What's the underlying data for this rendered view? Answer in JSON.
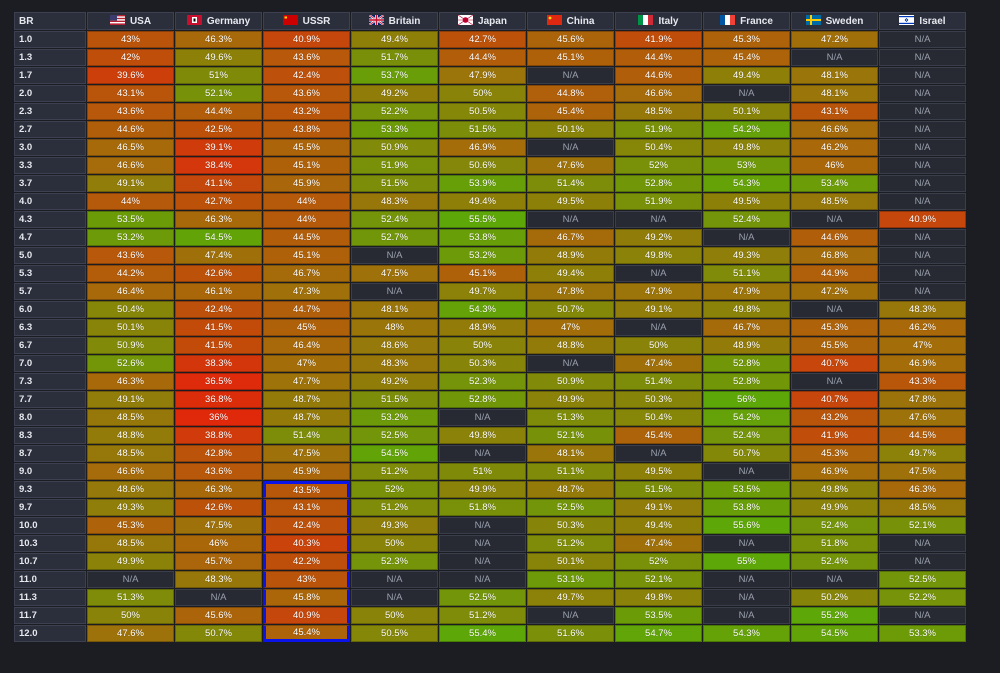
{
  "table": {
    "br_header": "BR",
    "nations": [
      {
        "name": "USA",
        "icon": "usa-flag-icon"
      },
      {
        "name": "Germany",
        "icon": "germany-flag-icon"
      },
      {
        "name": "USSR",
        "icon": "ussr-flag-icon"
      },
      {
        "name": "Britain",
        "icon": "britain-flag-icon"
      },
      {
        "name": "Japan",
        "icon": "japan-flag-icon"
      },
      {
        "name": "China",
        "icon": "china-flag-icon"
      },
      {
        "name": "Italy",
        "icon": "italy-flag-icon"
      },
      {
        "name": "France",
        "icon": "france-flag-icon"
      },
      {
        "name": "Sweden",
        "icon": "sweden-flag-icon"
      },
      {
        "name": "Israel",
        "icon": "israel-flag-icon"
      }
    ],
    "rows": [
      {
        "br": "1.0",
        "values": [
          "43%",
          "46.3%",
          "40.9%",
          "49.4%",
          "42.7%",
          "45.6%",
          "41.9%",
          "45.3%",
          "47.2%",
          "N/A"
        ]
      },
      {
        "br": "1.3",
        "values": [
          "42%",
          "49.6%",
          "43.6%",
          "51.7%",
          "44.4%",
          "45.1%",
          "44.4%",
          "45.4%",
          "N/A",
          "N/A"
        ]
      },
      {
        "br": "1.7",
        "values": [
          "39.6%",
          "51%",
          "42.4%",
          "53.7%",
          "47.9%",
          "N/A",
          "44.6%",
          "49.4%",
          "48.1%",
          "N/A"
        ]
      },
      {
        "br": "2.0",
        "values": [
          "43.1%",
          "52.1%",
          "43.6%",
          "49.2%",
          "50%",
          "44.8%",
          "46.6%",
          "N/A",
          "48.1%",
          "N/A"
        ]
      },
      {
        "br": "2.3",
        "values": [
          "43.6%",
          "44.4%",
          "43.2%",
          "52.2%",
          "50.5%",
          "45.4%",
          "48.5%",
          "50.1%",
          "43.1%",
          "N/A"
        ]
      },
      {
        "br": "2.7",
        "values": [
          "44.6%",
          "42.5%",
          "43.8%",
          "53.3%",
          "51.5%",
          "50.1%",
          "51.9%",
          "54.2%",
          "46.6%",
          "N/A"
        ]
      },
      {
        "br": "3.0",
        "values": [
          "46.5%",
          "39.1%",
          "45.5%",
          "50.9%",
          "46.9%",
          "N/A",
          "50.4%",
          "49.8%",
          "46.2%",
          "N/A"
        ]
      },
      {
        "br": "3.3",
        "values": [
          "46.6%",
          "38.4%",
          "45.1%",
          "51.9%",
          "50.6%",
          "47.6%",
          "52%",
          "53%",
          "46%",
          "N/A"
        ]
      },
      {
        "br": "3.7",
        "values": [
          "49.1%",
          "41.1%",
          "45.9%",
          "51.5%",
          "53.9%",
          "51.4%",
          "52.8%",
          "54.3%",
          "53.4%",
          "N/A"
        ]
      },
      {
        "br": "4.0",
        "values": [
          "44%",
          "42.7%",
          "44%",
          "48.3%",
          "49.4%",
          "49.5%",
          "51.9%",
          "49.5%",
          "48.5%",
          "N/A"
        ]
      },
      {
        "br": "4.3",
        "values": [
          "53.5%",
          "46.3%",
          "44%",
          "52.4%",
          "55.5%",
          "N/A",
          "N/A",
          "52.4%",
          "N/A",
          "40.9%"
        ]
      },
      {
        "br": "4.7",
        "values": [
          "53.2%",
          "54.5%",
          "44.5%",
          "52.7%",
          "53.8%",
          "46.7%",
          "49.2%",
          "N/A",
          "44.6%",
          "N/A"
        ]
      },
      {
        "br": "5.0",
        "values": [
          "43.6%",
          "47.4%",
          "45.1%",
          "N/A",
          "53.2%",
          "48.9%",
          "49.8%",
          "49.3%",
          "46.8%",
          "N/A"
        ]
      },
      {
        "br": "5.3",
        "values": [
          "44.2%",
          "42.6%",
          "46.7%",
          "47.5%",
          "45.1%",
          "49.4%",
          "N/A",
          "51.1%",
          "44.9%",
          "N/A"
        ]
      },
      {
        "br": "5.7",
        "values": [
          "46.4%",
          "46.1%",
          "47.3%",
          "N/A",
          "49.7%",
          "47.8%",
          "47.9%",
          "47.9%",
          "47.2%",
          "N/A"
        ]
      },
      {
        "br": "6.0",
        "values": [
          "50.4%",
          "42.4%",
          "44.7%",
          "48.1%",
          "54.3%",
          "50.7%",
          "49.1%",
          "49.8%",
          "N/A",
          "48.3%"
        ]
      },
      {
        "br": "6.3",
        "values": [
          "50.1%",
          "41.5%",
          "45%",
          "48%",
          "48.9%",
          "47%",
          "N/A",
          "46.7%",
          "45.3%",
          "46.2%"
        ]
      },
      {
        "br": "6.7",
        "values": [
          "50.9%",
          "41.5%",
          "46.4%",
          "48.6%",
          "50%",
          "48.8%",
          "50%",
          "48.9%",
          "45.5%",
          "47%"
        ]
      },
      {
        "br": "7.0",
        "values": [
          "52.6%",
          "38.3%",
          "47%",
          "48.3%",
          "50.3%",
          "N/A",
          "47.4%",
          "52.8%",
          "40.7%",
          "46.9%"
        ]
      },
      {
        "br": "7.3",
        "values": [
          "46.3%",
          "36.5%",
          "47.7%",
          "49.2%",
          "52.3%",
          "50.9%",
          "51.4%",
          "52.8%",
          "N/A",
          "43.3%"
        ]
      },
      {
        "br": "7.7",
        "values": [
          "49.1%",
          "36.8%",
          "48.7%",
          "51.5%",
          "52.8%",
          "49.9%",
          "50.3%",
          "56%",
          "40.7%",
          "47.8%"
        ]
      },
      {
        "br": "8.0",
        "values": [
          "48.5%",
          "36%",
          "48.7%",
          "53.2%",
          "N/A",
          "51.3%",
          "50.4%",
          "54.2%",
          "43.2%",
          "47.6%"
        ]
      },
      {
        "br": "8.3",
        "values": [
          "48.8%",
          "38.8%",
          "51.4%",
          "52.5%",
          "49.8%",
          "52.1%",
          "45.4%",
          "52.4%",
          "41.9%",
          "44.5%"
        ]
      },
      {
        "br": "8.7",
        "values": [
          "48.5%",
          "42.8%",
          "47.5%",
          "54.5%",
          "N/A",
          "48.1%",
          "N/A",
          "50.7%",
          "45.3%",
          "49.7%"
        ]
      },
      {
        "br": "9.0",
        "values": [
          "46.6%",
          "43.6%",
          "45.9%",
          "51.2%",
          "51%",
          "51.1%",
          "49.5%",
          "N/A",
          "46.9%",
          "47.5%"
        ]
      },
      {
        "br": "9.3",
        "values": [
          "48.6%",
          "46.3%",
          "43.5%",
          "52%",
          "49.9%",
          "48.7%",
          "51.5%",
          "53.5%",
          "49.8%",
          "46.3%"
        ]
      },
      {
        "br": "9.7",
        "values": [
          "49.3%",
          "42.6%",
          "43.1%",
          "51.2%",
          "51.8%",
          "52.5%",
          "49.1%",
          "53.8%",
          "49.9%",
          "48.5%"
        ]
      },
      {
        "br": "10.0",
        "values": [
          "45.3%",
          "47.5%",
          "42.4%",
          "49.3%",
          "N/A",
          "50.3%",
          "49.4%",
          "55.6%",
          "52.4%",
          "52.1%"
        ]
      },
      {
        "br": "10.3",
        "values": [
          "48.5%",
          "46%",
          "40.3%",
          "50%",
          "N/A",
          "51.2%",
          "47.4%",
          "N/A",
          "51.8%",
          "N/A"
        ]
      },
      {
        "br": "10.7",
        "values": [
          "49.9%",
          "45.7%",
          "42.2%",
          "52.3%",
          "N/A",
          "50.1%",
          "52%",
          "55%",
          "52.4%",
          "N/A"
        ]
      },
      {
        "br": "11.0",
        "values": [
          "N/A",
          "48.3%",
          "43%",
          "N/A",
          "N/A",
          "53.1%",
          "52.1%",
          "N/A",
          "N/A",
          "52.5%"
        ]
      },
      {
        "br": "11.3",
        "values": [
          "51.3%",
          "N/A",
          "45.8%",
          "N/A",
          "52.5%",
          "49.7%",
          "49.8%",
          "N/A",
          "50.2%",
          "52.2%"
        ]
      },
      {
        "br": "11.7",
        "values": [
          "50%",
          "45.6%",
          "40.9%",
          "50%",
          "51.2%",
          "N/A",
          "53.5%",
          "N/A",
          "55.2%",
          "N/A"
        ]
      },
      {
        "br": "12.0",
        "values": [
          "47.6%",
          "50.7%",
          "45.4%",
          "50.5%",
          "55.4%",
          "51.6%",
          "54.7%",
          "54.3%",
          "54.5%",
          "53.3%"
        ]
      }
    ],
    "highlight": {
      "nation": "USSR",
      "from_br": "9.3",
      "to_br": "12.0",
      "color": "#0a14e8"
    }
  },
  "colors": {
    "background": "#1c1d22",
    "header_bg": "#2b2e3b",
    "na_bg": "#272a33",
    "low": "#e0280b",
    "mid": "#a76a0a",
    "high": "#5ea708"
  }
}
